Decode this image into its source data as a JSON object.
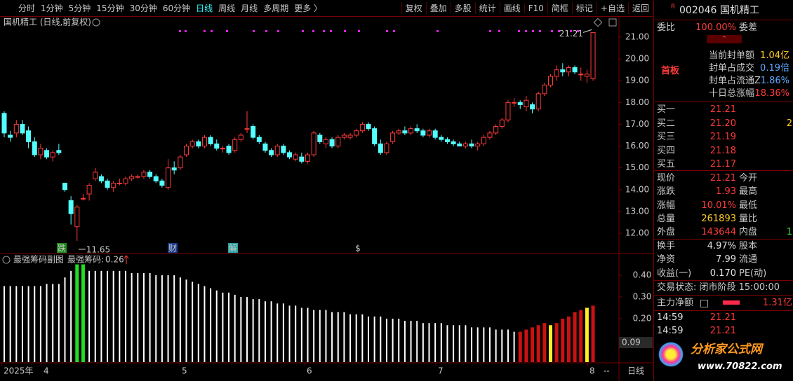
{
  "toolbar": {
    "periods": [
      "分时",
      "1分钟",
      "5分钟",
      "15分钟",
      "30分钟",
      "60分钟",
      "日线",
      "周线",
      "月线",
      "多周期",
      "更多 〉"
    ],
    "active": 6,
    "actions": [
      "复权",
      "叠加",
      "多股",
      "统计",
      "画线",
      "F10",
      "简框",
      "标记",
      "+自选",
      "返回"
    ]
  },
  "main_chart": {
    "title": "国机精工 (日线,前复权)",
    "ylim": [
      11.07,
      21.93
    ],
    "yticks": [
      {
        "value": 21,
        "label": "21.00"
      },
      {
        "value": 20,
        "label": "20.00"
      },
      {
        "value": 19,
        "label": "19.00"
      },
      {
        "value": 18,
        "label": "18.00"
      },
      {
        "value": 17,
        "label": "17.00"
      },
      {
        "value": 16,
        "label": "16.00"
      },
      {
        "value": 15,
        "label": "15.00"
      },
      {
        "value": 14,
        "label": "14.00"
      },
      {
        "value": 13,
        "label": "13.00"
      },
      {
        "value": 12,
        "label": "12.00"
      }
    ],
    "up_color": "#ff3a3a",
    "down_color": "#54ffff",
    "candles": [
      [
        17.5,
        17.6,
        16.4,
        16.6
      ],
      [
        16.5,
        16.7,
        16.2,
        16.4
      ],
      [
        16.6,
        17.2,
        16.4,
        17.0
      ],
      [
        17.0,
        17.2,
        16.5,
        16.6
      ],
      [
        16.7,
        16.9,
        15.9,
        16.2
      ],
      [
        16.2,
        16.4,
        15.5,
        15.6
      ],
      [
        15.6,
        16.1,
        15.4,
        15.9
      ],
      [
        15.8,
        15.9,
        15.4,
        15.5
      ],
      [
        15.5,
        15.8,
        15.3,
        15.7
      ],
      [
        15.8,
        16.1,
        15.6,
        15.7
      ],
      [
        14.3,
        14.3,
        13.9,
        14.0
      ],
      [
        13.5,
        13.7,
        12.4,
        12.9
      ],
      [
        12.3,
        13.3,
        11.65,
        13.2
      ],
      [
        13.6,
        13.8,
        13.5,
        13.6
      ],
      [
        13.8,
        14.3,
        13.5,
        14.2
      ],
      [
        14.5,
        15.0,
        14.4,
        14.8
      ],
      [
        14.6,
        14.7,
        14.3,
        14.4
      ],
      [
        14.4,
        14.5,
        14.0,
        14.1
      ],
      [
        14.1,
        14.4,
        13.9,
        14.3
      ],
      [
        14.3,
        14.5,
        14.2,
        14.3
      ],
      [
        14.3,
        14.6,
        14.2,
        14.5
      ],
      [
        14.5,
        14.7,
        14.4,
        14.6
      ],
      [
        14.6,
        14.7,
        14.5,
        14.6
      ],
      [
        14.6,
        14.9,
        14.5,
        14.8
      ],
      [
        14.8,
        14.9,
        14.5,
        14.6
      ],
      [
        14.6,
        14.7,
        14.3,
        14.4
      ],
      [
        14.4,
        14.5,
        14.1,
        14.2
      ],
      [
        14.1,
        15.4,
        14.0,
        15.0
      ],
      [
        15.0,
        15.3,
        14.7,
        14.9
      ],
      [
        15.0,
        15.6,
        14.9,
        15.5
      ],
      [
        15.6,
        16.1,
        15.5,
        16.0
      ],
      [
        16.0,
        16.3,
        15.9,
        16.2
      ],
      [
        16.2,
        16.3,
        15.9,
        16.0
      ],
      [
        16.0,
        16.5,
        15.9,
        16.4
      ],
      [
        16.4,
        16.5,
        16.0,
        16.1
      ],
      [
        16.1,
        16.3,
        15.8,
        15.9
      ],
      [
        15.9,
        16.0,
        15.7,
        15.9
      ],
      [
        16.0,
        16.1,
        15.6,
        15.7
      ],
      [
        15.8,
        16.4,
        15.7,
        16.3
      ],
      [
        16.3,
        16.6,
        16.2,
        16.5
      ],
      [
        16.8,
        17.6,
        16.6,
        16.8
      ],
      [
        16.9,
        17.0,
        16.3,
        16.4
      ],
      [
        16.4,
        16.5,
        16.1,
        16.2
      ],
      [
        16.1,
        16.2,
        15.7,
        15.8
      ],
      [
        15.8,
        15.9,
        15.5,
        15.6
      ],
      [
        15.6,
        16.1,
        15.5,
        16.0
      ],
      [
        16.0,
        16.1,
        15.6,
        15.7
      ],
      [
        15.7,
        15.8,
        15.4,
        15.5
      ],
      [
        15.4,
        15.7,
        15.3,
        15.6
      ],
      [
        15.5,
        15.7,
        15.2,
        15.3
      ],
      [
        15.3,
        15.7,
        15.2,
        15.6
      ],
      [
        15.6,
        16.7,
        15.5,
        16.6
      ],
      [
        16.5,
        16.6,
        16.1,
        16.2
      ],
      [
        16.1,
        16.4,
        15.9,
        16.3
      ],
      [
        16.3,
        16.4,
        15.9,
        16.0
      ],
      [
        16.0,
        16.5,
        15.9,
        16.4
      ],
      [
        16.4,
        16.6,
        16.3,
        16.5
      ],
      [
        16.4,
        16.6,
        16.3,
        16.5
      ],
      [
        16.5,
        16.8,
        16.4,
        16.7
      ],
      [
        16.7,
        17.1,
        16.6,
        17.0
      ],
      [
        17.0,
        17.1,
        16.7,
        16.8
      ],
      [
        16.8,
        16.9,
        16.0,
        16.1
      ],
      [
        16.1,
        16.3,
        15.6,
        15.7
      ],
      [
        15.7,
        16.2,
        15.6,
        16.1
      ],
      [
        16.2,
        16.7,
        16.1,
        16.6
      ],
      [
        16.6,
        16.8,
        16.5,
        16.7
      ],
      [
        16.7,
        16.9,
        16.5,
        16.6
      ],
      [
        16.6,
        16.9,
        16.5,
        16.8
      ],
      [
        16.8,
        17.0,
        16.6,
        16.7
      ],
      [
        16.7,
        16.8,
        16.4,
        16.5
      ],
      [
        16.5,
        16.8,
        16.4,
        16.7
      ],
      [
        16.7,
        16.8,
        16.3,
        16.4
      ],
      [
        16.4,
        16.5,
        16.2,
        16.3
      ],
      [
        16.3,
        16.4,
        16.1,
        16.2
      ],
      [
        16.2,
        16.3,
        16.0,
        16.1
      ],
      [
        16.1,
        16.2,
        16.0,
        16.0
      ],
      [
        16.0,
        16.2,
        15.9,
        16.1
      ],
      [
        16.1,
        16.3,
        15.9,
        16.0
      ],
      [
        16.0,
        16.2,
        15.8,
        16.1
      ],
      [
        16.1,
        16.5,
        16.0,
        16.4
      ],
      [
        16.4,
        16.7,
        16.3,
        16.6
      ],
      [
        16.6,
        17.0,
        16.5,
        16.9
      ],
      [
        16.9,
        17.3,
        16.8,
        17.2
      ],
      [
        17.2,
        18.1,
        17.1,
        18.0
      ],
      [
        18.0,
        18.2,
        17.8,
        18.0
      ],
      [
        18.0,
        18.1,
        17.7,
        17.9
      ],
      [
        17.8,
        18.3,
        17.6,
        18.1
      ],
      [
        17.9,
        18.0,
        17.5,
        17.7
      ],
      [
        17.7,
        18.5,
        17.6,
        18.4
      ],
      [
        18.4,
        18.9,
        18.3,
        18.8
      ],
      [
        18.8,
        19.3,
        18.7,
        19.2
      ],
      [
        19.2,
        19.7,
        19.0,
        19.5
      ],
      [
        19.5,
        19.8,
        19.2,
        19.4
      ],
      [
        19.4,
        19.7,
        19.2,
        19.6
      ],
      [
        19.6,
        19.7,
        19.3,
        19.4
      ],
      [
        19.3,
        19.6,
        19.0,
        19.3
      ],
      [
        19.2,
        19.5,
        18.9,
        19.3
      ],
      [
        19.1,
        21.21,
        19.0,
        21.21
      ]
    ],
    "annotations": {
      "high": {
        "value": 21.21,
        "label": "21.21"
      },
      "low": {
        "value": 11.65,
        "label": "11.65"
      }
    },
    "signals": [
      "跌",
      "财",
      "解",
      "$"
    ]
  },
  "sub_chart": {
    "title": "最强筹码副图",
    "indicator": "最强筹码:",
    "current": "0.26",
    "ylim": [
      0,
      0.5
    ],
    "yticks": [
      {
        "value": 0.4,
        "label": "0.40"
      },
      {
        "value": 0.3,
        "label": "0.30"
      },
      {
        "value": 0.2,
        "label": "0.20"
      }
    ],
    "cursor": {
      "value": 0.09,
      "label": "0.09"
    },
    "values": [
      0.35,
      0.35,
      0.35,
      0.35,
      0.35,
      0.35,
      0.35,
      0.36,
      0.36,
      0.36,
      0.39,
      0.42,
      0.45,
      0.45,
      0.42,
      0.42,
      0.42,
      0.42,
      0.42,
      0.42,
      0.42,
      0.41,
      0.41,
      0.41,
      0.41,
      0.4,
      0.4,
      0.4,
      0.4,
      0.39,
      0.38,
      0.37,
      0.36,
      0.35,
      0.34,
      0.33,
      0.32,
      0.32,
      0.31,
      0.3,
      0.3,
      0.29,
      0.29,
      0.28,
      0.28,
      0.27,
      0.27,
      0.26,
      0.26,
      0.25,
      0.25,
      0.24,
      0.24,
      0.24,
      0.23,
      0.23,
      0.23,
      0.22,
      0.22,
      0.22,
      0.21,
      0.21,
      0.21,
      0.2,
      0.2,
      0.2,
      0.19,
      0.19,
      0.19,
      0.18,
      0.18,
      0.18,
      0.18,
      0.17,
      0.17,
      0.17,
      0.17,
      0.16,
      0.16,
      0.16,
      0.16,
      0.15,
      0.15,
      0.15,
      0.14,
      0.14,
      0.15,
      0.16,
      0.17,
      0.18,
      0.17,
      0.18,
      0.2,
      0.21,
      0.23,
      0.24,
      0.25,
      0.26
    ],
    "colors": [
      "#ffffff",
      "#ffffff",
      "#ffffff",
      "#ffffff",
      "#ffffff",
      "#ffffff",
      "#ffffff",
      "#ffffff",
      "#ffffff",
      "#ffffff",
      "#ffffff",
      "#ffffff",
      "#22dd22",
      "#22dd22",
      "#ffffff",
      "#ffffff",
      "#ffffff",
      "#ffffff",
      "#ffffff",
      "#ffffff",
      "#ffffff",
      "#ffffff",
      "#ffffff",
      "#ffffff",
      "#ffffff",
      "#ffffff",
      "#ffffff",
      "#ffffff",
      "#ffffff",
      "#ffffff",
      "#ffffff",
      "#ffffff",
      "#ffffff",
      "#ffffff",
      "#ffffff",
      "#ffffff",
      "#ffffff",
      "#ffffff",
      "#ffffff",
      "#ffffff",
      "#ffffff",
      "#ffffff",
      "#ffffff",
      "#ffffff",
      "#ffffff",
      "#ffffff",
      "#ffffff",
      "#ffffff",
      "#ffffff",
      "#ffffff",
      "#ffffff",
      "#ffffff",
      "#ffffff",
      "#ffffff",
      "#ffffff",
      "#ffffff",
      "#ffffff",
      "#ffffff",
      "#ffffff",
      "#ffffff",
      "#ffffff",
      "#ffffff",
      "#ffffff",
      "#ffffff",
      "#ffffff",
      "#ffffff",
      "#ffffff",
      "#ffffff",
      "#ffffff",
      "#ffffff",
      "#ffffff",
      "#ffffff",
      "#ffffff",
      "#ffffff",
      "#ffffff",
      "#ffffff",
      "#ffffff",
      "#ffffff",
      "#ffffff",
      "#ffffff",
      "#ffffff",
      "#ffffff",
      "#ffffff",
      "#ffffff",
      "#ffffff",
      "#cc1111",
      "#cc1111",
      "#cc1111",
      "#cc1111",
      "#cc1111",
      "#ffee22",
      "#cc1111",
      "#cc1111",
      "#cc1111",
      "#cc1111",
      "#cc1111",
      "#ffee22",
      "#cc1111"
    ]
  },
  "x_axis": {
    "labels": [
      "2025年",
      "4",
      "5",
      "6",
      "7",
      "8"
    ],
    "nav": "--",
    "period": "日线"
  },
  "quote_panel": {
    "tag": "R",
    "code": "002046",
    "name": "国机精工",
    "weibi": [
      "委比",
      "100.00%",
      "委差"
    ],
    "badge": "首板",
    "seal": [
      [
        "当前封单额",
        "1.04亿"
      ],
      [
        "封单占成交",
        "0.19倍"
      ],
      [
        "封单占流通Z",
        "1.86%"
      ],
      [
        "十日总涨幅",
        "18.36%"
      ]
    ],
    "book": [
      [
        "买一",
        "21.21"
      ],
      [
        "买二",
        "21.20",
        "2"
      ],
      [
        "买三",
        "21.19"
      ],
      [
        "买四",
        "21.18"
      ],
      [
        "买五",
        "21.17"
      ]
    ],
    "stats": [
      [
        "现价",
        "21.21",
        "今开"
      ],
      [
        "涨跌",
        "1.93",
        "最高"
      ],
      [
        "涨幅",
        "10.01%",
        "最低"
      ],
      [
        "总量",
        "261893",
        "量比"
      ],
      [
        "外盘",
        "143644",
        "内盘",
        "1"
      ]
    ],
    "stats2": [
      [
        "换手",
        "4.97%",
        "股本"
      ],
      [
        "净资",
        "7.99",
        "流通"
      ],
      [
        "收益(一)",
        "0.170",
        "PE(动)"
      ]
    ],
    "status": "交易状态: 闭市阶段 15:00:00",
    "main_net": [
      "主力净额",
      "1.31亿"
    ],
    "ticks": [
      [
        "14:59",
        "21.21"
      ],
      [
        "14:59",
        "21.21"
      ]
    ],
    "watermark": [
      "分析家公式网",
      "www.70822.com"
    ]
  }
}
